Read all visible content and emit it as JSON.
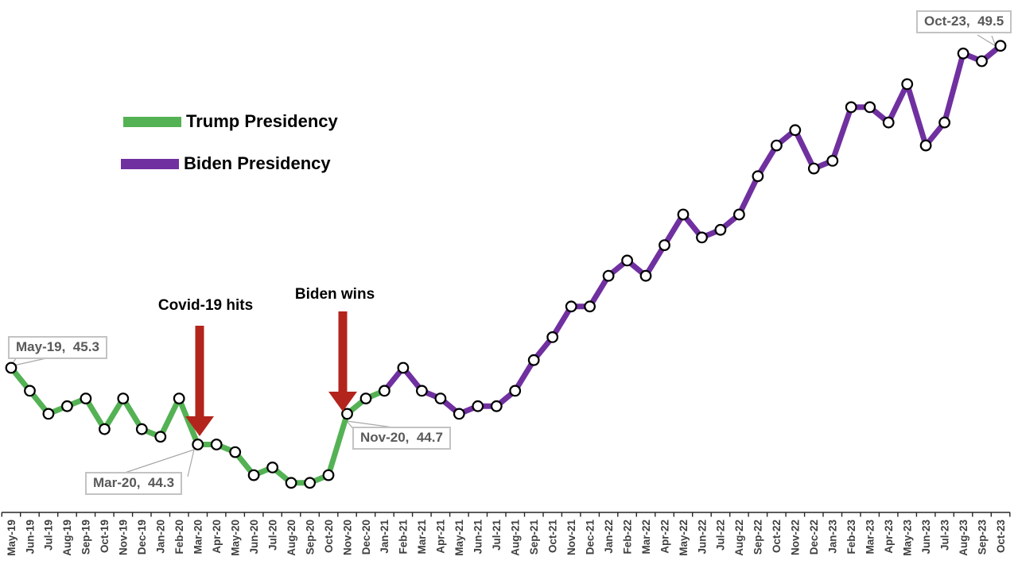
{
  "background": "#FFFFFF",
  "chart_data": {
    "type": "line",
    "title": "",
    "xlabel": "",
    "ylabel": "",
    "ylim": [
      43.5,
      49.8
    ],
    "grid": false,
    "legend_position": "top-left",
    "marker": {
      "shape": "circle",
      "fill": "#FFFFFF",
      "stroke": "#000000"
    },
    "x_labels": [
      "May-19",
      "Jun-19",
      "Jul-19",
      "Aug-19",
      "Sep-19",
      "Oct-19",
      "Nov-19",
      "Dec-19",
      "Jan-20",
      "Feb-20",
      "Mar-20",
      "Apr-20",
      "May-20",
      "Jun-20",
      "Jul-20",
      "Aug-20",
      "Sep-20",
      "Oct-20",
      "Nov-20",
      "Dec-20",
      "Jan-21",
      "Feb-21",
      "Mar-21",
      "Apr-21",
      "May-21",
      "Jun-21",
      "Jul-21",
      "Aug-21",
      "Sep-21",
      "Oct-21",
      "Nov-21",
      "Dec-21",
      "Jan-22",
      "Feb-22",
      "Mar-22",
      "Apr-22",
      "May-22",
      "Jun-22",
      "Jul-22",
      "Aug-22",
      "Sep-22",
      "Oct-22",
      "Nov-22",
      "Dec-22",
      "Jan-23",
      "Feb-23",
      "Mar-23",
      "Apr-23",
      "May-23",
      "Jun-23",
      "Jul-23",
      "Aug-23",
      "Sep-23",
      "Oct-23"
    ],
    "series": [
      {
        "name": "Trump Presidency",
        "color": "#54B254",
        "start_index": 0,
        "values": [
          45.3,
          45.0,
          44.7,
          44.8,
          44.9,
          44.5,
          44.9,
          44.5,
          44.4,
          44.9,
          44.3,
          44.3,
          44.2,
          43.9,
          44.0,
          43.8,
          43.8,
          43.9,
          44.7,
          44.9,
          45.0
        ]
      },
      {
        "name": "Biden Presidency",
        "color": "#7030A0",
        "start_index": 20,
        "values": [
          45.0,
          45.3,
          45.0,
          44.9,
          44.7,
          44.8,
          44.8,
          45.0,
          45.4,
          45.7,
          46.1,
          46.1,
          46.5,
          46.7,
          46.5,
          46.9,
          47.3,
          47.0,
          47.1,
          47.3,
          47.8,
          48.2,
          48.4,
          47.9,
          48.0,
          48.7,
          48.7,
          48.5,
          49.0,
          48.2,
          48.5,
          49.4,
          49.3,
          49.5
        ]
      }
    ]
  },
  "legend": {
    "items": [
      {
        "label": "Trump Presidency"
      },
      {
        "label": "Biden Presidency"
      }
    ]
  },
  "annotations": {
    "covid": {
      "text": "Covid-19 hits",
      "arrow_color": "#B3241C",
      "points_to": "Mar-20"
    },
    "biden_wins": {
      "text": "Biden wins",
      "arrow_color": "#B3241C",
      "points_to": "Nov-20"
    }
  },
  "callouts": [
    {
      "label": "May-19,  45.3",
      "point": "May-19",
      "value": 45.3
    },
    {
      "label": "Mar-20,  44.3",
      "point": "Mar-20",
      "value": 44.3
    },
    {
      "label": "Nov-20,  44.7",
      "point": "Nov-20",
      "value": 44.7
    },
    {
      "label": "Oct-23,  49.5",
      "point": "Oct-23",
      "value": 49.5
    }
  ],
  "colors": {
    "axis_line": "#262626",
    "axis_label_text": "#3F3F3F",
    "callout_border": "#C3C3C3",
    "callout_text": "#595959",
    "leader_line": "#A8A8A8"
  }
}
